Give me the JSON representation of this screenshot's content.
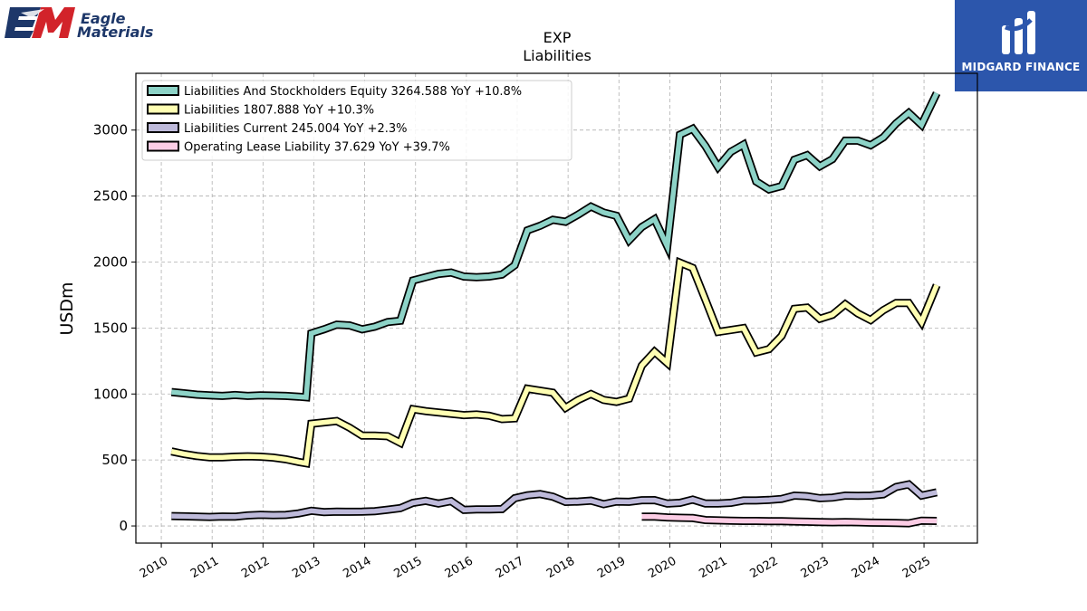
{
  "branding": {
    "left_logo_line1": "Eagle",
    "left_logo_line2": "Materials",
    "right_logo_name": "MIDGARD FINANCE",
    "left_logo_colors": {
      "red": "#d2232a",
      "navy": "#1d3769"
    },
    "right_logo_bg": "#2c56ac"
  },
  "chart_data": {
    "type": "line",
    "title": "EXP",
    "subtitle": "Liabilities",
    "ylabel": "USDm",
    "xlabel": "",
    "ylim": [
      -130,
      3430
    ],
    "xlim": [
      2009.5,
      2026.05
    ],
    "yticks": [
      0,
      500,
      1000,
      1500,
      2000,
      2500,
      3000
    ],
    "ytick_labels": [
      "0",
      "500",
      "1000",
      "1500",
      "2000",
      "2500",
      "3000"
    ],
    "xticks": [
      2010,
      2011,
      2012,
      2013,
      2014,
      2015,
      2016,
      2017,
      2018,
      2019,
      2020,
      2021,
      2022,
      2023,
      2024,
      2025
    ],
    "xtick_labels": [
      "2010",
      "2011",
      "2012",
      "2013",
      "2014",
      "2015",
      "2016",
      "2017",
      "2018",
      "2019",
      "2020",
      "2021",
      "2022",
      "2023",
      "2024",
      "2025"
    ],
    "grid": true,
    "legend_position": "top-left",
    "series": [
      {
        "name": "Liabilities And Stockholders Equity",
        "legend_label": "Liabilities And Stockholders Equity  3264.588 YoY +10.8%",
        "color": "#8dd3c7",
        "points": [
          [
            2010.2,
            1015
          ],
          [
            2010.45,
            1005
          ],
          [
            2010.7,
            995
          ],
          [
            2010.95,
            990
          ],
          [
            2011.2,
            985
          ],
          [
            2011.45,
            992
          ],
          [
            2011.7,
            985
          ],
          [
            2011.95,
            990
          ],
          [
            2012.2,
            988
          ],
          [
            2012.45,
            985
          ],
          [
            2012.7,
            980
          ],
          [
            2012.85,
            975
          ],
          [
            2012.95,
            1460
          ],
          [
            2013.2,
            1490
          ],
          [
            2013.45,
            1525
          ],
          [
            2013.7,
            1520
          ],
          [
            2013.95,
            1490
          ],
          [
            2014.2,
            1510
          ],
          [
            2014.45,
            1545
          ],
          [
            2014.7,
            1555
          ],
          [
            2014.95,
            1860
          ],
          [
            2015.2,
            1885
          ],
          [
            2015.45,
            1910
          ],
          [
            2015.7,
            1920
          ],
          [
            2015.95,
            1890
          ],
          [
            2016.2,
            1885
          ],
          [
            2016.45,
            1890
          ],
          [
            2016.7,
            1905
          ],
          [
            2016.95,
            1975
          ],
          [
            2017.2,
            2240
          ],
          [
            2017.45,
            2275
          ],
          [
            2017.7,
            2320
          ],
          [
            2017.95,
            2305
          ],
          [
            2018.2,
            2360
          ],
          [
            2018.45,
            2420
          ],
          [
            2018.7,
            2375
          ],
          [
            2018.95,
            2350
          ],
          [
            2019.2,
            2165
          ],
          [
            2019.45,
            2265
          ],
          [
            2019.7,
            2325
          ],
          [
            2019.95,
            2120
          ],
          [
            2020.2,
            2965
          ],
          [
            2020.45,
            3010
          ],
          [
            2020.7,
            2880
          ],
          [
            2020.95,
            2720
          ],
          [
            2021.2,
            2835
          ],
          [
            2021.45,
            2890
          ],
          [
            2021.7,
            2610
          ],
          [
            2021.95,
            2550
          ],
          [
            2022.2,
            2575
          ],
          [
            2022.45,
            2775
          ],
          [
            2022.7,
            2810
          ],
          [
            2022.95,
            2725
          ],
          [
            2023.2,
            2780
          ],
          [
            2023.45,
            2920
          ],
          [
            2023.7,
            2920
          ],
          [
            2023.95,
            2885
          ],
          [
            2024.2,
            2945
          ],
          [
            2024.45,
            3050
          ],
          [
            2024.7,
            3130
          ],
          [
            2024.95,
            3040
          ],
          [
            2025.25,
            3280
          ]
        ]
      },
      {
        "name": "Liabilities",
        "legend_label": "Liabilities  1807.888 YoY +10.3%",
        "color": "#ffffb3",
        "points": [
          [
            2010.2,
            565
          ],
          [
            2010.45,
            545
          ],
          [
            2010.7,
            530
          ],
          [
            2010.95,
            520
          ],
          [
            2011.2,
            520
          ],
          [
            2011.45,
            525
          ],
          [
            2011.7,
            528
          ],
          [
            2011.95,
            525
          ],
          [
            2012.2,
            518
          ],
          [
            2012.45,
            505
          ],
          [
            2012.7,
            485
          ],
          [
            2012.85,
            475
          ],
          [
            2012.95,
            775
          ],
          [
            2013.2,
            785
          ],
          [
            2013.45,
            795
          ],
          [
            2013.7,
            745
          ],
          [
            2013.95,
            685
          ],
          [
            2014.2,
            685
          ],
          [
            2014.45,
            680
          ],
          [
            2014.7,
            630
          ],
          [
            2014.95,
            885
          ],
          [
            2015.2,
            870
          ],
          [
            2015.45,
            860
          ],
          [
            2015.7,
            850
          ],
          [
            2015.95,
            840
          ],
          [
            2016.2,
            845
          ],
          [
            2016.45,
            835
          ],
          [
            2016.7,
            810
          ],
          [
            2016.95,
            815
          ],
          [
            2017.2,
            1040
          ],
          [
            2017.45,
            1025
          ],
          [
            2017.7,
            1010
          ],
          [
            2017.95,
            895
          ],
          [
            2018.2,
            955
          ],
          [
            2018.45,
            1000
          ],
          [
            2018.7,
            955
          ],
          [
            2018.95,
            940
          ],
          [
            2019.2,
            965
          ],
          [
            2019.45,
            1215
          ],
          [
            2019.7,
            1320
          ],
          [
            2019.95,
            1235
          ],
          [
            2020.2,
            1995
          ],
          [
            2020.45,
            1955
          ],
          [
            2020.7,
            1715
          ],
          [
            2020.95,
            1470
          ],
          [
            2021.2,
            1485
          ],
          [
            2021.45,
            1500
          ],
          [
            2021.7,
            1315
          ],
          [
            2021.95,
            1340
          ],
          [
            2022.2,
            1440
          ],
          [
            2022.45,
            1645
          ],
          [
            2022.7,
            1655
          ],
          [
            2022.95,
            1570
          ],
          [
            2023.2,
            1600
          ],
          [
            2023.45,
            1680
          ],
          [
            2023.7,
            1610
          ],
          [
            2023.95,
            1560
          ],
          [
            2024.2,
            1635
          ],
          [
            2024.45,
            1690
          ],
          [
            2024.7,
            1690
          ],
          [
            2024.95,
            1545
          ],
          [
            2025.25,
            1825
          ]
        ]
      },
      {
        "name": "Liabilities Current",
        "legend_label": "Liabilities Current  245.004 YoY +2.3%",
        "color": "#bebada",
        "points": [
          [
            2010.2,
            75
          ],
          [
            2010.45,
            73
          ],
          [
            2010.7,
            70
          ],
          [
            2010.95,
            68
          ],
          [
            2011.2,
            72
          ],
          [
            2011.45,
            70
          ],
          [
            2011.7,
            80
          ],
          [
            2011.95,
            85
          ],
          [
            2012.2,
            82
          ],
          [
            2012.45,
            83
          ],
          [
            2012.7,
            95
          ],
          [
            2012.95,
            115
          ],
          [
            2013.2,
            105
          ],
          [
            2013.45,
            108
          ],
          [
            2013.7,
            107
          ],
          [
            2013.95,
            108
          ],
          [
            2014.2,
            112
          ],
          [
            2014.45,
            123
          ],
          [
            2014.7,
            135
          ],
          [
            2014.95,
            175
          ],
          [
            2015.2,
            190
          ],
          [
            2015.45,
            170
          ],
          [
            2015.7,
            188
          ],
          [
            2015.95,
            122
          ],
          [
            2016.2,
            125
          ],
          [
            2016.45,
            125
          ],
          [
            2016.7,
            128
          ],
          [
            2016.95,
            210
          ],
          [
            2017.2,
            232
          ],
          [
            2017.45,
            242
          ],
          [
            2017.7,
            222
          ],
          [
            2017.95,
            182
          ],
          [
            2018.2,
            185
          ],
          [
            2018.45,
            192
          ],
          [
            2018.7,
            165
          ],
          [
            2018.95,
            185
          ],
          [
            2019.2,
            183
          ],
          [
            2019.45,
            195
          ],
          [
            2019.7,
            196
          ],
          [
            2019.95,
            170
          ],
          [
            2020.2,
            175
          ],
          [
            2020.45,
            200
          ],
          [
            2020.7,
            170
          ],
          [
            2020.95,
            170
          ],
          [
            2021.2,
            175
          ],
          [
            2021.45,
            193
          ],
          [
            2021.7,
            193
          ],
          [
            2021.95,
            197
          ],
          [
            2022.2,
            205
          ],
          [
            2022.45,
            230
          ],
          [
            2022.7,
            225
          ],
          [
            2022.95,
            210
          ],
          [
            2023.2,
            215
          ],
          [
            2023.45,
            230
          ],
          [
            2023.7,
            228
          ],
          [
            2023.95,
            230
          ],
          [
            2024.2,
            240
          ],
          [
            2024.45,
            295
          ],
          [
            2024.7,
            315
          ],
          [
            2024.95,
            230
          ],
          [
            2025.25,
            255
          ]
        ]
      },
      {
        "name": "Operating Lease Liability",
        "legend_label": "Operating Lease Liability  37.629 YoY +39.7%",
        "color": "#fccde5",
        "points": [
          [
            2019.45,
            70
          ],
          [
            2019.7,
            70
          ],
          [
            2019.95,
            65
          ],
          [
            2020.2,
            62
          ],
          [
            2020.45,
            60
          ],
          [
            2020.7,
            45
          ],
          [
            2020.95,
            42
          ],
          [
            2021.2,
            40
          ],
          [
            2021.45,
            38
          ],
          [
            2021.7,
            38
          ],
          [
            2021.95,
            37
          ],
          [
            2022.2,
            36
          ],
          [
            2022.45,
            34
          ],
          [
            2022.7,
            32
          ],
          [
            2022.95,
            30
          ],
          [
            2023.2,
            28
          ],
          [
            2023.45,
            30
          ],
          [
            2023.7,
            28
          ],
          [
            2023.95,
            25
          ],
          [
            2024.2,
            24
          ],
          [
            2024.45,
            22
          ],
          [
            2024.7,
            20
          ],
          [
            2024.95,
            40
          ],
          [
            2025.25,
            38
          ]
        ]
      }
    ]
  }
}
